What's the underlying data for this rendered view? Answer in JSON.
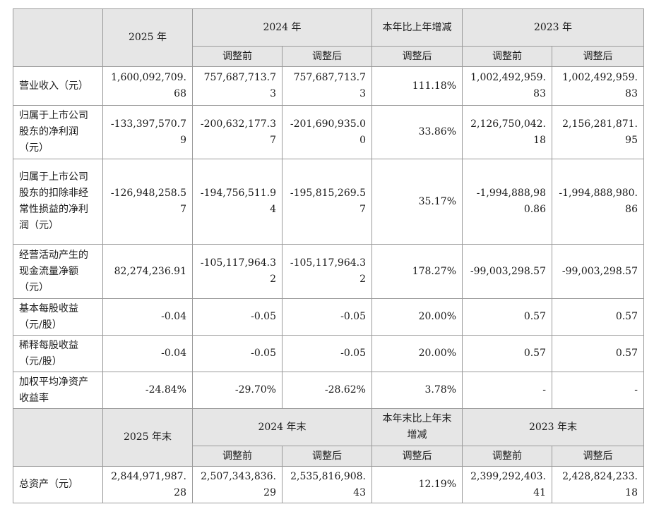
{
  "header1": {
    "col_2025": "2025 年",
    "col_2024": "2024 年",
    "col_change": "本年比上年增减",
    "col_2023": "2023 年",
    "before_adj": "调整前",
    "after_adj": "调整后"
  },
  "rows": [
    {
      "label": "营业收入（元）",
      "v2025": "1,600,092,709.68",
      "v2024_before": "757,687,713.73",
      "v2024_after": "757,687,713.73",
      "change": "111.18%",
      "v2023_before": "1,002,492,959.83",
      "v2023_after": "1,002,492,959.83"
    },
    {
      "label": "归属于上市公司股东的净利润（元）",
      "v2025": "-133,397,570.79",
      "v2024_before": "-200,632,177.37",
      "v2024_after": "-201,690,935.00",
      "change": "33.86%",
      "v2023_before": "2,126,750,042.18",
      "v2023_after": "2,156,281,871.95"
    },
    {
      "label": "归属于上市公司股东的扣除非经常性损益的净利润（元）",
      "v2025": "-126,948,258.57",
      "v2024_before": "-194,756,511.94",
      "v2024_after": "-195,815,269.57",
      "change": "35.17%",
      "v2023_before": "-1,994,888,980.86",
      "v2023_after": "-1,994,888,980.86"
    },
    {
      "label": "经营活动产生的现金流量净额（元）",
      "v2025": "82,274,236.91",
      "v2024_before": "-105,117,964.32",
      "v2024_after": "-105,117,964.32",
      "change": "178.27%",
      "v2023_before": "-99,003,298.57",
      "v2023_after": "-99,003,298.57"
    },
    {
      "label": "基本每股收益（元/股）",
      "v2025": "-0.04",
      "v2024_before": "-0.05",
      "v2024_after": "-0.05",
      "change": "20.00%",
      "v2023_before": "0.57",
      "v2023_after": "0.57"
    },
    {
      "label": "稀释每股收益（元/股）",
      "v2025": "-0.04",
      "v2024_before": "-0.05",
      "v2024_after": "-0.05",
      "change": "20.00%",
      "v2023_before": "0.57",
      "v2023_after": "0.57"
    },
    {
      "label": "加权平均净资产收益率",
      "v2025": "-24.84%",
      "v2024_before": "-29.70%",
      "v2024_after": "-28.62%",
      "change": "3.78%",
      "v2023_before": "-",
      "v2023_after": "-"
    }
  ],
  "header2": {
    "col_2025": "2025 年末",
    "col_2024": "2024 年末",
    "col_change": "本年末比上年末增减",
    "col_2023": "2023 年末",
    "before_adj": "调整前",
    "after_adj": "调整后"
  },
  "rows2": [
    {
      "label": "总资产（元）",
      "v2025": "2,844,971,987.28",
      "v2024_before": "2,507,343,836.29",
      "v2024_after": "2,535,816,908.43",
      "change": "12.19%",
      "v2023_before": "2,399,292,403.41",
      "v2023_after": "2,428,824,233.18"
    }
  ]
}
